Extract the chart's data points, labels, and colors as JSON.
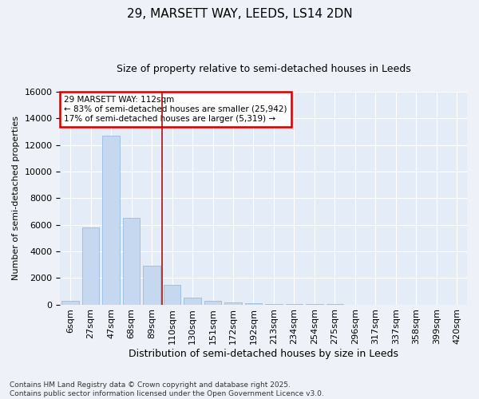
{
  "title_line1": "29, MARSETT WAY, LEEDS, LS14 2DN",
  "title_line2": "Size of property relative to semi-detached houses in Leeds",
  "xlabel": "Distribution of semi-detached houses by size in Leeds",
  "ylabel": "Number of semi-detached properties",
  "categories": [
    "6sqm",
    "27sqm",
    "47sqm",
    "68sqm",
    "89sqm",
    "110sqm",
    "130sqm",
    "151sqm",
    "172sqm",
    "192sqm",
    "213sqm",
    "234sqm",
    "254sqm",
    "275sqm",
    "296sqm",
    "317sqm",
    "337sqm",
    "358sqm",
    "399sqm",
    "420sqm"
  ],
  "values": [
    300,
    5800,
    12700,
    6500,
    2900,
    1500,
    500,
    250,
    150,
    80,
    50,
    30,
    20,
    10,
    5,
    3,
    2,
    1,
    1,
    0
  ],
  "bar_color": "#c5d8ef",
  "bar_edge_color": "#8ab4d8",
  "vline_x": 4.5,
  "vline_color": "#aa1111",
  "annotation_text": "29 MARSETT WAY: 112sqm\n← 83% of semi-detached houses are smaller (25,942)\n17% of semi-detached houses are larger (5,319) →",
  "annotation_box_color": "#ffffff",
  "annotation_border_color": "#cc0000",
  "ylim": [
    0,
    16000
  ],
  "yticks": [
    0,
    2000,
    4000,
    6000,
    8000,
    10000,
    12000,
    14000,
    16000
  ],
  "footer_line1": "Contains HM Land Registry data © Crown copyright and database right 2025.",
  "footer_line2": "Contains public sector information licensed under the Open Government Licence v3.0.",
  "background_color": "#eef2f8",
  "plot_bg_color": "#e4ecf7",
  "grid_color": "#ffffff",
  "title_fontsize": 11,
  "subtitle_fontsize": 9,
  "ylabel_fontsize": 8,
  "xlabel_fontsize": 9,
  "tick_fontsize": 8,
  "annot_fontsize": 7.5,
  "footer_fontsize": 6.5
}
